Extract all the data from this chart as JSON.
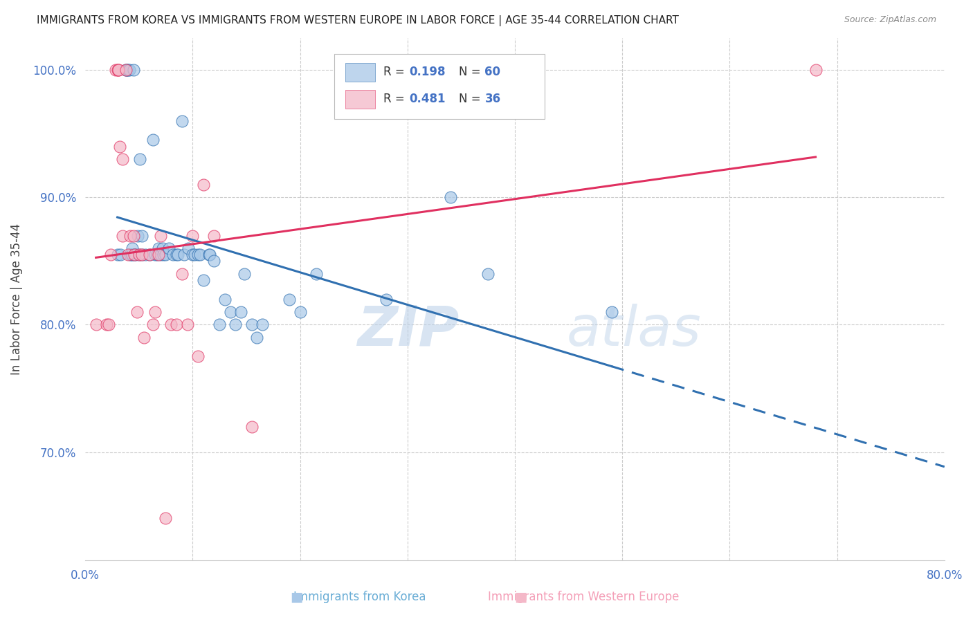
{
  "title": "IMMIGRANTS FROM KOREA VS IMMIGRANTS FROM WESTERN EUROPE IN LABOR FORCE | AGE 35-44 CORRELATION CHART",
  "source": "Source: ZipAtlas.com",
  "xlabel_blue": "Immigrants from Korea",
  "xlabel_pink": "Immigrants from Western Europe",
  "ylabel": "In Labor Force | Age 35-44",
  "R_blue": 0.198,
  "N_blue": 60,
  "R_pink": 0.481,
  "N_pink": 36,
  "xlim": [
    0.0,
    0.8
  ],
  "ylim": [
    0.615,
    1.025
  ],
  "yticks": [
    0.7,
    0.8,
    0.9,
    1.0
  ],
  "ytick_labels": [
    "70.0%",
    "80.0%",
    "90.0%",
    "100.0%"
  ],
  "color_blue": "#a8c8e8",
  "color_pink": "#f4b8c8",
  "color_blue_line": "#3070b0",
  "color_pink_line": "#e03060",
  "watermark_zip": "ZIP",
  "watermark_atlas": "atlas",
  "blue_x": [
    0.03,
    0.033,
    0.038,
    0.038,
    0.039,
    0.04,
    0.041,
    0.042,
    0.043,
    0.044,
    0.044,
    0.045,
    0.046,
    0.047,
    0.049,
    0.05,
    0.051,
    0.053,
    0.053,
    0.056,
    0.06,
    0.063,
    0.065,
    0.067,
    0.068,
    0.07,
    0.072,
    0.073,
    0.075,
    0.078,
    0.082,
    0.085,
    0.086,
    0.09,
    0.092,
    0.096,
    0.1,
    0.102,
    0.105,
    0.107,
    0.11,
    0.115,
    0.116,
    0.12,
    0.125,
    0.13,
    0.135,
    0.14,
    0.145,
    0.148,
    0.155,
    0.16,
    0.165,
    0.19,
    0.2,
    0.215,
    0.28,
    0.34,
    0.375,
    0.49
  ],
  "blue_y": [
    0.855,
    0.855,
    1.0,
    1.0,
    1.0,
    1.0,
    1.0,
    0.855,
    0.855,
    0.855,
    0.86,
    1.0,
    0.855,
    0.855,
    0.87,
    0.855,
    0.93,
    0.87,
    0.855,
    0.855,
    0.855,
    0.945,
    0.855,
    0.855,
    0.86,
    0.855,
    0.86,
    0.855,
    0.855,
    0.86,
    0.855,
    0.855,
    0.855,
    0.96,
    0.855,
    0.86,
    0.855,
    0.855,
    0.855,
    0.855,
    0.835,
    0.855,
    0.855,
    0.85,
    0.8,
    0.82,
    0.81,
    0.8,
    0.81,
    0.84,
    0.8,
    0.79,
    0.8,
    0.82,
    0.81,
    0.84,
    0.82,
    0.9,
    0.84,
    0.81
  ],
  "pink_x": [
    0.01,
    0.02,
    0.022,
    0.024,
    0.028,
    0.03,
    0.031,
    0.031,
    0.032,
    0.035,
    0.035,
    0.038,
    0.04,
    0.042,
    0.045,
    0.046,
    0.048,
    0.05,
    0.053,
    0.055,
    0.06,
    0.063,
    0.065,
    0.068,
    0.07,
    0.075,
    0.08,
    0.085,
    0.09,
    0.095,
    0.1,
    0.105,
    0.11,
    0.12,
    0.155,
    0.68
  ],
  "pink_y": [
    0.8,
    0.8,
    0.8,
    0.855,
    1.0,
    1.0,
    1.0,
    1.0,
    0.94,
    0.93,
    0.87,
    1.0,
    0.855,
    0.87,
    0.87,
    0.855,
    0.81,
    0.855,
    0.855,
    0.79,
    0.855,
    0.8,
    0.81,
    0.855,
    0.87,
    0.648,
    0.8,
    0.8,
    0.84,
    0.8,
    0.87,
    0.775,
    0.91,
    0.87,
    0.72,
    1.0
  ]
}
